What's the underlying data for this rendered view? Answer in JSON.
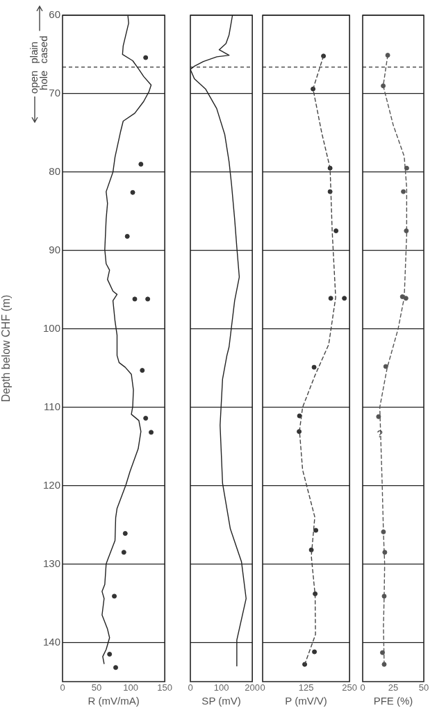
{
  "chart_data": [
    {
      "type": "line",
      "xlabel": "R (mV/mA)",
      "ylabel": "Depth below CHF (m)",
      "xlim": [
        0,
        150
      ],
      "xticks": [
        0,
        50,
        100,
        150
      ],
      "ylim": [
        145,
        60
      ],
      "yticks": [
        60,
        70,
        80,
        90,
        100,
        110,
        120,
        130,
        140
      ],
      "grid": "y",
      "ref_lines": [
        {
          "axis": "y",
          "value": 66.6,
          "line_style": "dashed",
          "color": "#333333"
        }
      ],
      "annotations": [
        "plain cased",
        "open hole"
      ],
      "series": [
        {
          "type": "line",
          "color": "#222222",
          "marker": "none",
          "x": [
            96,
            97,
            89,
            88,
            103,
            112,
            119,
            130,
            127,
            119,
            106,
            89,
            85,
            77,
            74,
            64,
            66,
            64,
            62,
            64,
            69,
            66,
            74,
            80,
            74,
            77,
            80,
            80,
            83,
            92,
            101,
            104,
            103,
            101,
            112,
            115,
            111,
            99,
            93,
            80,
            78,
            77,
            66,
            64,
            62,
            58,
            61,
            58,
            66,
            69,
            64,
            59,
            61
          ],
          "values": [
            60.1,
            61,
            63.9,
            65,
            65.8,
            66.9,
            67.8,
            68.9,
            69.7,
            71,
            72.5,
            73.5,
            74.9,
            78.1,
            80,
            82.5,
            84,
            86,
            89.9,
            91.7,
            92.5,
            93.7,
            95.2,
            95.6,
            96.4,
            99,
            100.8,
            103.4,
            104.3,
            104.9,
            105.8,
            107.8,
            109.9,
            110.9,
            111.7,
            113.1,
            115.3,
            118.2,
            119.9,
            122.9,
            124.1,
            127,
            129.5,
            130,
            132.6,
            133.5,
            134.4,
            136.5,
            138.3,
            139.4,
            140.9,
            141.8,
            142.7
          ]
        },
        {
          "type": "scatter",
          "color": "#333333",
          "marker": "circle",
          "x": [
            122,
            115,
            103,
            95,
            106,
            125,
            117,
            122,
            130,
            92,
            90,
            76,
            69,
            78
          ],
          "values": [
            65.4,
            79,
            82.6,
            88.2,
            96.2,
            96.2,
            105.3,
            111.4,
            113.2,
            126.1,
            128.5,
            134.1,
            141.5,
            143.2
          ]
        }
      ]
    },
    {
      "type": "line",
      "xlabel": "SP (mV)",
      "xlim": [
        0,
        200
      ],
      "xticks": [
        0,
        100,
        200
      ],
      "ylim": [
        145,
        60
      ],
      "yticks": [
        60,
        70,
        80,
        90,
        100,
        110,
        120,
        130,
        140
      ],
      "grid": "y",
      "tick_labels": "x",
      "ref_lines": [
        {
          "axis": "y",
          "value": 66.6,
          "line_style": "dashed",
          "color": "#333333"
        }
      ],
      "series": [
        {
          "type": "line",
          "color": "#222222",
          "marker": "none",
          "x": [
            136,
            125,
            115,
            93,
            125,
            85,
            42,
            13,
            0,
            13,
            49,
            85,
            111,
            125,
            133,
            143,
            150,
            158,
            143,
            125,
            118,
            104,
            96,
            104,
            129,
            165,
            180,
            150,
            150
          ],
          "values": [
            60,
            62.5,
            63.6,
            64.4,
            65.1,
            65.3,
            65.9,
            66.5,
            66.9,
            68.1,
            69.4,
            71.9,
            75.2,
            78.7,
            81.6,
            86,
            89.6,
            93.4,
            96.4,
            102.3,
            103.4,
            106.4,
            112.3,
            119.7,
            125.5,
            129.7,
            134.4,
            139.7,
            143
          ]
        }
      ]
    },
    {
      "type": "line",
      "xlabel": "P (mV/V)",
      "xlim": [
        0,
        250
      ],
      "xticks": [
        0,
        125,
        250
      ],
      "ylim": [
        145,
        60
      ],
      "yticks": [
        60,
        70,
        80,
        90,
        100,
        110,
        120,
        130,
        140
      ],
      "grid": "y",
      "tick_labels": "x",
      "ref_lines": [
        {
          "axis": "y",
          "value": 66.6,
          "line_style": "dashed",
          "color": "#333333"
        }
      ],
      "series": [
        {
          "type": "line",
          "color": "#444444",
          "marker": "none",
          "line_style": "dashed",
          "x": [
            175,
            145,
            170,
            194,
            200,
            210,
            190,
            150,
            115,
            106,
            115,
            150,
            140,
            151,
            152,
            121
          ],
          "values": [
            65.2,
            69.4,
            75,
            79.5,
            87.5,
            96,
            102,
            106,
            110,
            113,
            118,
            124,
            129,
            134,
            139,
            142.8
          ]
        },
        {
          "type": "scatter",
          "color": "#333333",
          "marker": "circle",
          "x": [
            175,
            145,
            194,
            194,
            211,
            196,
            235,
            148,
            106,
            105,
            153,
            140,
            151,
            149,
            121
          ],
          "values": [
            65.2,
            69.4,
            79.5,
            82.5,
            87.5,
            96.1,
            96.1,
            104.9,
            111.1,
            113.1,
            125.7,
            128.2,
            133.8,
            141.2,
            142.8
          ]
        }
      ]
    },
    {
      "type": "line",
      "xlabel": "PFE (%)",
      "xlim": [
        0,
        50
      ],
      "xticks": [
        0,
        25,
        50
      ],
      "ylim": [
        145,
        60
      ],
      "yticks": [
        60,
        70,
        80,
        90,
        100,
        110,
        120,
        130,
        140
      ],
      "grid": "y",
      "tick_labels": "x",
      "ref_lines": [
        {
          "axis": "y",
          "value": 66.6,
          "line_style": "dashed",
          "color": "#333333"
        }
      ],
      "annotations": [
        {
          "text": "?",
          "x": 14,
          "y": 113.5
        }
      ],
      "series": [
        {
          "type": "line",
          "color": "#555555",
          "marker": "none",
          "line_style": "dashed",
          "x": [
            20.5,
            16.8,
            25,
            34,
            36,
            36,
            35,
            34,
            29,
            20,
            14,
            15,
            16,
            17,
            18,
            17.6,
            17,
            17.6
          ],
          "values": [
            65.1,
            69,
            74,
            78,
            82,
            88,
            92,
            96,
            100,
            105,
            110,
            115,
            120,
            126,
            130,
            134,
            138,
            142.8
          ]
        },
        {
          "type": "scatter",
          "color": "#555555",
          "marker": "circle",
          "x": [
            20.5,
            16.8,
            36,
            33.3,
            35.7,
            32.5,
            35.4,
            18.9,
            13,
            17,
            18.1,
            17.6,
            16.2,
            17.6
          ],
          "values": [
            65.1,
            69,
            79.5,
            82.5,
            87.5,
            95.9,
            96.1,
            104.8,
            111.2,
            125.9,
            128.5,
            134.1,
            141.3,
            142.8
          ]
        }
      ]
    }
  ]
}
